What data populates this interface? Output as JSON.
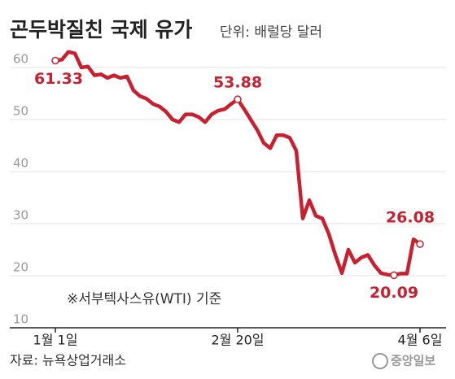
{
  "chart_data": {
    "type": "line",
    "title": "곤두박질친 국제 유가",
    "subtitle": "단위: 배럴당 달러",
    "note": "※서부텍사스유(WTI) 기준",
    "source": "자료: 뉴욕상업거래소",
    "logo": "중앙일보",
    "color": "#c8202f",
    "categories": [
      "1월 1일",
      null,
      null,
      null,
      null,
      null,
      null,
      null,
      null,
      null,
      null,
      null,
      null,
      null,
      null,
      null,
      null,
      null,
      null,
      null,
      null,
      null,
      null,
      null,
      null,
      null,
      null,
      null,
      "2월 20일",
      null,
      null,
      null,
      null,
      null,
      null,
      null,
      null,
      null,
      null,
      null,
      null,
      null,
      null,
      null,
      null,
      null,
      null,
      null,
      null,
      null,
      null,
      null,
      null,
      null,
      null,
      null,
      "4월 6일"
    ],
    "values": [
      61.33,
      61.5,
      63,
      62.7,
      60,
      60.2,
      58.5,
      58.7,
      58,
      58.5,
      58,
      58.3,
      55.6,
      54.5,
      54,
      53,
      52.5,
      51.5,
      50,
      49.5,
      51,
      51,
      50.5,
      49.5,
      51,
      51.7,
      52,
      53,
      53.88,
      52,
      50,
      48,
      45.5,
      44.5,
      47,
      47,
      46.5,
      44,
      31,
      34.5,
      31.5,
      31,
      28,
      24,
      20.5,
      25,
      22.5,
      23.5,
      24,
      22,
      20.5,
      20.2,
      20.09,
      20.4,
      20.4,
      27,
      26.08
    ],
    "value_labels": [
      "61.33",
      null,
      null,
      null,
      null,
      null,
      null,
      null,
      null,
      null,
      null,
      null,
      null,
      null,
      null,
      null,
      null,
      null,
      null,
      null,
      null,
      null,
      null,
      null,
      null,
      null,
      null,
      null,
      "53.88",
      null,
      null,
      null,
      null,
      null,
      null,
      null,
      null,
      null,
      null,
      null,
      null,
      null,
      null,
      null,
      null,
      null,
      null,
      null,
      null,
      null,
      null,
      null,
      "20.09",
      null,
      null,
      null,
      "26.08"
    ],
    "ylim": [
      10,
      65
    ],
    "yticks": [
      10,
      20,
      30,
      40,
      50,
      60
    ],
    "grid": true
  }
}
